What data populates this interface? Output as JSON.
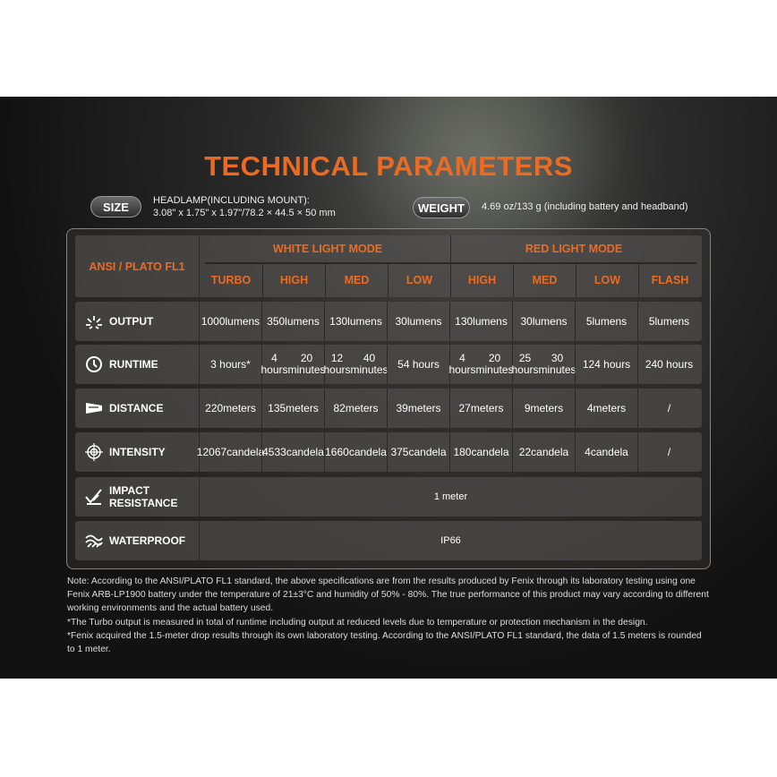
{
  "title": "TECHNICAL PARAMETERS",
  "size": {
    "label": "SIZE",
    "line1": "HEADLAMP(INCLUDING MOUNT):",
    "line2": "3.08\" x 1.75\" x 1.97\"/78.2 × 44.5 × 50 mm"
  },
  "weight": {
    "label": "WEIGHT",
    "value": "4.69 oz/133 g (including battery and headband)"
  },
  "table": {
    "corner": "ANSI / PLATO FL1",
    "groups": [
      "WHITE LIGHT MODE",
      "RED LIGHT MODE"
    ],
    "modes": [
      "TURBO",
      "HIGH",
      "MED",
      "LOW",
      "HIGH",
      "MED",
      "LOW",
      "FLASH"
    ],
    "rows": [
      {
        "label": "OUTPUT",
        "icon": "burst-icon",
        "cells": [
          [
            "1000",
            "lumens"
          ],
          [
            "350",
            "lumens"
          ],
          [
            "130",
            "lumens"
          ],
          [
            "30",
            "lumens"
          ],
          [
            "130",
            "lumens"
          ],
          [
            "30",
            "lumens"
          ],
          [
            "5",
            "lumens"
          ],
          [
            "5",
            "lumens"
          ]
        ]
      },
      {
        "label": "RUNTIME",
        "icon": "clock-icon",
        "cells": [
          [
            "3 hours*"
          ],
          [
            "4 hours",
            "20 minutes"
          ],
          [
            "12 hours",
            "40 minutes"
          ],
          [
            "54 hours"
          ],
          [
            "4 hours",
            "20 minutes"
          ],
          [
            "25 hours",
            "30 minutes"
          ],
          [
            "124 hours"
          ],
          [
            "240 hours"
          ]
        ]
      },
      {
        "label": "DISTANCE",
        "icon": "beam-icon",
        "cells": [
          [
            "220",
            "meters"
          ],
          [
            "135",
            "meters"
          ],
          [
            "82",
            "meters"
          ],
          [
            "39",
            "meters"
          ],
          [
            "27",
            "meters"
          ],
          [
            "9",
            "meters"
          ],
          [
            "4",
            "meters"
          ],
          [
            "/"
          ]
        ]
      },
      {
        "label": "INTENSITY",
        "icon": "target-icon",
        "cells": [
          [
            "12067",
            "candela"
          ],
          [
            "4533",
            "candela"
          ],
          [
            "1660",
            "candela"
          ],
          [
            "375",
            "candela"
          ],
          [
            "180",
            "candela"
          ],
          [
            "22",
            "candela"
          ],
          [
            "4",
            "candela"
          ],
          [
            "/"
          ]
        ]
      }
    ],
    "impact": {
      "label1": "IMPACT",
      "label2": "RESISTANCE",
      "value": "1 meter"
    },
    "waterproof": {
      "label": "WATERPROOF",
      "value": "IP66"
    }
  },
  "notes": [
    "Note: According to the ANSI/PLATO FL1 standard, the above specifications are from the results produced by Fenix through its laboratory testing using one Fenix ARB-LP1900 battery under the temperature of 21±3°C and humidity of 50% - 80%. The true performance of this product may vary according to different working environments and the actual battery used.",
    "*The Turbo output is measured in total of runtime including output at reduced levels due to temperature or protection mechanism in the design.",
    "*Fenix acquired the 1.5-meter drop results through its own laboratory testing. According to the ANSI/PLATO FL1 standard, the data of 1.5 meters is rounded to 1 meter."
  ],
  "colors": {
    "accent": "#ec6b22"
  }
}
